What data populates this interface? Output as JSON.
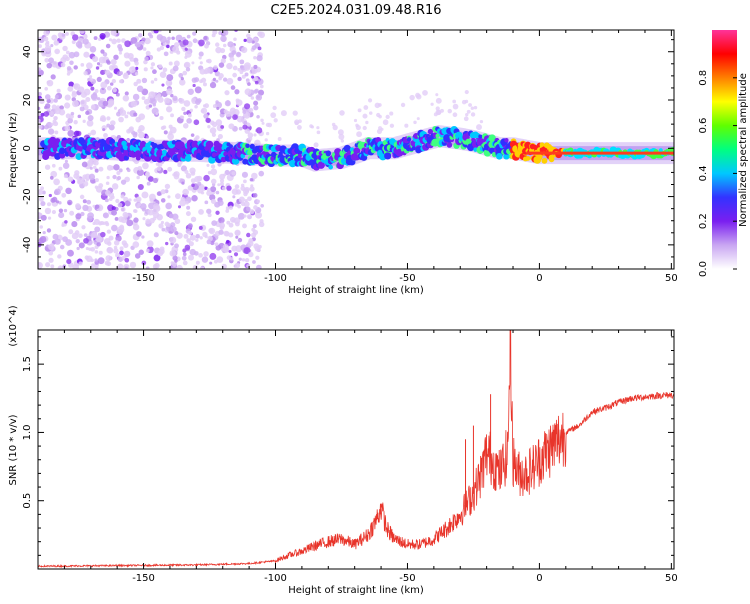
{
  "title": "C2E5.2024.031.09.48.R16",
  "chart_data": [
    {
      "type": "heatmap",
      "xlabel": "Height of straight line (km)",
      "ylabel": "Frequency (Hz)",
      "xlim": [
        -190,
        51
      ],
      "ylim": [
        -50,
        49
      ],
      "xticks": [
        -150,
        -100,
        -50,
        0,
        50
      ],
      "yticks": [
        -40,
        -20,
        0,
        20,
        40
      ],
      "colorbar": {
        "label": "Normalized spectral amplitude",
        "range": [
          0,
          1
        ],
        "ticks": [
          "0.0",
          "0.2",
          "0.4",
          "0.6",
          "0.8"
        ],
        "colors": [
          "#ffffff",
          "#c9a6f2",
          "#7a1ff0",
          "#3333ff",
          "#00c8ff",
          "#00ff80",
          "#60ff00",
          "#ffff00",
          "#ff8000",
          "#ff0000",
          "#ff3399"
        ]
      },
      "ridge": {
        "x": [
          -190,
          -170,
          -150,
          -130,
          -115,
          -100,
          -90,
          -85,
          -75,
          -65,
          -55,
          -45,
          -38,
          -30,
          -25,
          -15,
          -10,
          -5,
          0,
          10,
          20,
          30,
          40,
          51
        ],
        "y": [
          0,
          0,
          -1,
          -1,
          -2,
          -3,
          -3,
          -5,
          -4,
          0,
          0,
          3,
          5,
          4,
          3,
          0,
          0,
          -1,
          -2,
          -2,
          -2,
          -2,
          -2,
          -2
        ]
      }
    },
    {
      "type": "line",
      "xlabel": "Height of straight line (km)",
      "ylabel": "SNR (10 * v/v)",
      "multiplier": "(x10^4)",
      "xlim": [
        -190,
        51
      ],
      "ylim": [
        0,
        17500
      ],
      "xticks": [
        -150,
        -100,
        -50,
        0,
        50
      ],
      "yticks": [
        5000,
        10000,
        15000
      ],
      "ytick_labels": [
        "0.5",
        "1.0",
        "1.5"
      ],
      "color": "#e8342a",
      "series": [
        {
          "x": [
            -190,
            -160,
            -130,
            -110,
            -100,
            -95,
            -90,
            -85,
            -80,
            -75,
            -70,
            -65,
            -62,
            -60,
            -58,
            -55,
            -50,
            -45,
            -40,
            -35,
            -30,
            -25,
            -22,
            -20,
            -18,
            -15,
            -12,
            -11,
            -10,
            -8,
            -5,
            -2,
            0,
            5,
            10,
            15,
            20,
            25,
            30,
            35,
            40,
            45,
            51
          ],
          "y": [
            200,
            250,
            300,
            400,
            600,
            1000,
            1300,
            1700,
            2000,
            2200,
            1800,
            2500,
            3500,
            4500,
            3000,
            2200,
            1800,
            1800,
            2200,
            3000,
            4000,
            5500,
            7000,
            8500,
            8000,
            7000,
            8500,
            17500,
            8000,
            7000,
            7000,
            7500,
            8000,
            9000,
            10000,
            10500,
            11500,
            11800,
            12200,
            12500,
            12600,
            12700,
            12750
          ]
        }
      ]
    }
  ]
}
